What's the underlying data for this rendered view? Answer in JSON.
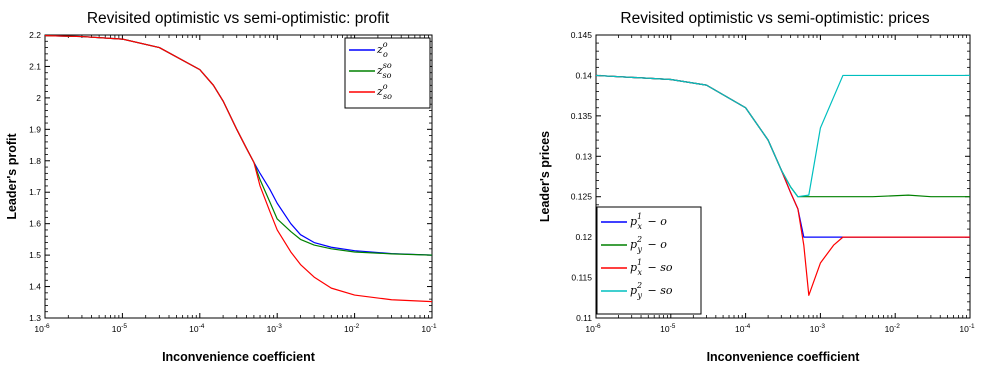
{
  "chart_data": [
    {
      "type": "line",
      "title": "Revisited optimistic vs semi-optimistic: profit",
      "xlabel": "Inconvenience coefficient",
      "ylabel": "Leader's profit",
      "xscale": "log",
      "xlim": [
        1e-06,
        0.1
      ],
      "ylim": [
        1.3,
        2.2
      ],
      "xtick_labels": [
        "10-6",
        "10-5",
        "10-4",
        "10-3",
        "10-2",
        "10-1"
      ],
      "ytick_labels": [
        "1.3",
        "1.4",
        "1.5",
        "1.6",
        "1.7",
        "1.8",
        "1.9",
        "2",
        "2.1",
        "2.2"
      ],
      "grid": false,
      "legend": "top-right",
      "series": [
        {
          "name": "z_o^o",
          "color": "#0000ff",
          "points": [
            [
              1e-06,
              2.198
            ],
            [
              3e-06,
              2.195
            ],
            [
              1e-05,
              2.187
            ],
            [
              3e-05,
              2.16
            ],
            [
              0.0001,
              2.09
            ],
            [
              0.00015,
              2.04
            ],
            [
              0.0002,
              1.99
            ],
            [
              0.0003,
              1.9
            ],
            [
              0.0004,
              1.84
            ],
            [
              0.0005,
              1.795
            ],
            [
              0.0006,
              1.76
            ],
            [
              0.0008,
              1.71
            ],
            [
              0.001,
              1.665
            ],
            [
              0.0015,
              1.6
            ],
            [
              0.002,
              1.565
            ],
            [
              0.003,
              1.54
            ],
            [
              0.005,
              1.525
            ],
            [
              0.01,
              1.514
            ],
            [
              0.03,
              1.505
            ],
            [
              0.1,
              1.5
            ]
          ]
        },
        {
          "name": "z_so^so",
          "color": "#008000",
          "points": [
            [
              1e-06,
              2.198
            ],
            [
              3e-06,
              2.195
            ],
            [
              1e-05,
              2.187
            ],
            [
              3e-05,
              2.16
            ],
            [
              0.0001,
              2.09
            ],
            [
              0.00015,
              2.04
            ],
            [
              0.0002,
              1.99
            ],
            [
              0.0003,
              1.9
            ],
            [
              0.0004,
              1.84
            ],
            [
              0.0005,
              1.795
            ],
            [
              0.0006,
              1.74
            ],
            [
              0.0008,
              1.67
            ],
            [
              0.001,
              1.615
            ],
            [
              0.0015,
              1.575
            ],
            [
              0.002,
              1.55
            ],
            [
              0.003,
              1.532
            ],
            [
              0.005,
              1.52
            ],
            [
              0.01,
              1.51
            ],
            [
              0.03,
              1.504
            ],
            [
              0.1,
              1.5
            ]
          ]
        },
        {
          "name": "z_so^o",
          "color": "#ff0000",
          "points": [
            [
              1e-06,
              2.198
            ],
            [
              3e-06,
              2.195
            ],
            [
              1e-05,
              2.187
            ],
            [
              3e-05,
              2.16
            ],
            [
              0.0001,
              2.09
            ],
            [
              0.00015,
              2.04
            ],
            [
              0.0002,
              1.99
            ],
            [
              0.0003,
              1.9
            ],
            [
              0.0004,
              1.84
            ],
            [
              0.0005,
              1.795
            ],
            [
              0.0006,
              1.72
            ],
            [
              0.0008,
              1.64
            ],
            [
              0.001,
              1.58
            ],
            [
              0.0015,
              1.51
            ],
            [
              0.002,
              1.47
            ],
            [
              0.003,
              1.43
            ],
            [
              0.005,
              1.395
            ],
            [
              0.01,
              1.373
            ],
            [
              0.03,
              1.358
            ],
            [
              0.1,
              1.352
            ]
          ]
        }
      ]
    },
    {
      "type": "line",
      "title": "Revisited optimistic vs semi-optimistic: prices",
      "xlabel": "Inconvenience coefficient",
      "ylabel": "Leader's prices",
      "xscale": "log",
      "xlim": [
        1e-06,
        0.1
      ],
      "ylim": [
        0.11,
        0.145
      ],
      "xtick_labels": [
        "10-6",
        "10-5",
        "10-4",
        "10-3",
        "10-2",
        "10-1"
      ],
      "ytick_labels": [
        "0.11",
        "0.115",
        "0.12",
        "0.125",
        "0.13",
        "0.135",
        "0.14",
        "0.145"
      ],
      "grid": false,
      "legend": "bottom-left",
      "series": [
        {
          "name": "p_x^1 - o",
          "color": "#0000ff",
          "points": [
            [
              1e-06,
              0.14
            ],
            [
              1e-05,
              0.1395
            ],
            [
              3e-05,
              0.1388
            ],
            [
              0.0001,
              0.136
            ],
            [
              0.0002,
              0.132
            ],
            [
              0.0003,
              0.1283
            ],
            [
              0.0004,
              0.1255
            ],
            [
              0.0005,
              0.1235
            ],
            [
              0.0006,
              0.12
            ],
            [
              0.002,
              0.12
            ],
            [
              0.1,
              0.12
            ]
          ]
        },
        {
          "name": "p_y^2 - o",
          "color": "#008000",
          "points": [
            [
              1e-06,
              0.14
            ],
            [
              1e-05,
              0.1395
            ],
            [
              3e-05,
              0.1388
            ],
            [
              0.0001,
              0.136
            ],
            [
              0.0002,
              0.132
            ],
            [
              0.0003,
              0.1283
            ],
            [
              0.0004,
              0.1262
            ],
            [
              0.0005,
              0.125
            ],
            [
              0.001,
              0.125
            ],
            [
              0.005,
              0.125
            ],
            [
              0.015,
              0.1252
            ],
            [
              0.03,
              0.125
            ],
            [
              0.1,
              0.125
            ]
          ]
        },
        {
          "name": "p_x^1 - so",
          "color": "#ff0000",
          "points": [
            [
              1e-06,
              0.14
            ],
            [
              1e-05,
              0.1395
            ],
            [
              3e-05,
              0.1388
            ],
            [
              0.0001,
              0.136
            ],
            [
              0.0002,
              0.132
            ],
            [
              0.0003,
              0.1283
            ],
            [
              0.0004,
              0.1255
            ],
            [
              0.0005,
              0.1235
            ],
            [
              0.0006,
              0.119
            ],
            [
              0.0007,
              0.1128
            ],
            [
              0.001,
              0.1168
            ],
            [
              0.0015,
              0.119
            ],
            [
              0.002,
              0.12
            ],
            [
              0.01,
              0.12
            ],
            [
              0.1,
              0.12
            ]
          ]
        },
        {
          "name": "p_y^2 - so",
          "color": "#00bfbf",
          "points": [
            [
              1e-06,
              0.14
            ],
            [
              1e-05,
              0.1395
            ],
            [
              3e-05,
              0.1388
            ],
            [
              0.0001,
              0.136
            ],
            [
              0.0002,
              0.132
            ],
            [
              0.0003,
              0.1283
            ],
            [
              0.0004,
              0.1262
            ],
            [
              0.0005,
              0.125
            ],
            [
              0.0007,
              0.1252
            ],
            [
              0.001,
              0.1335
            ],
            [
              0.002,
              0.14
            ],
            [
              0.01,
              0.14
            ],
            [
              0.1,
              0.14
            ]
          ]
        }
      ]
    }
  ]
}
